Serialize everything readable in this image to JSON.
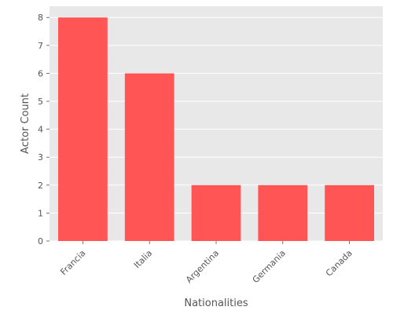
{
  "chart_data": {
    "type": "bar",
    "title": "",
    "xlabel": "Nationalities",
    "ylabel": "Actor Count",
    "categories": [
      "Francia",
      "Italia",
      "Argentina",
      "Germania",
      "Canada"
    ],
    "values": [
      8,
      6,
      2,
      2,
      2
    ],
    "ylim": [
      0,
      8.4
    ],
    "yticks": [
      0,
      1,
      2,
      3,
      4,
      5,
      6,
      7,
      8
    ],
    "grid": true,
    "legend": "none",
    "colors": {
      "bar": "#ff5555",
      "plot_background": "#e8e8e8",
      "grid": "#ffffff",
      "text": "#555555"
    }
  }
}
